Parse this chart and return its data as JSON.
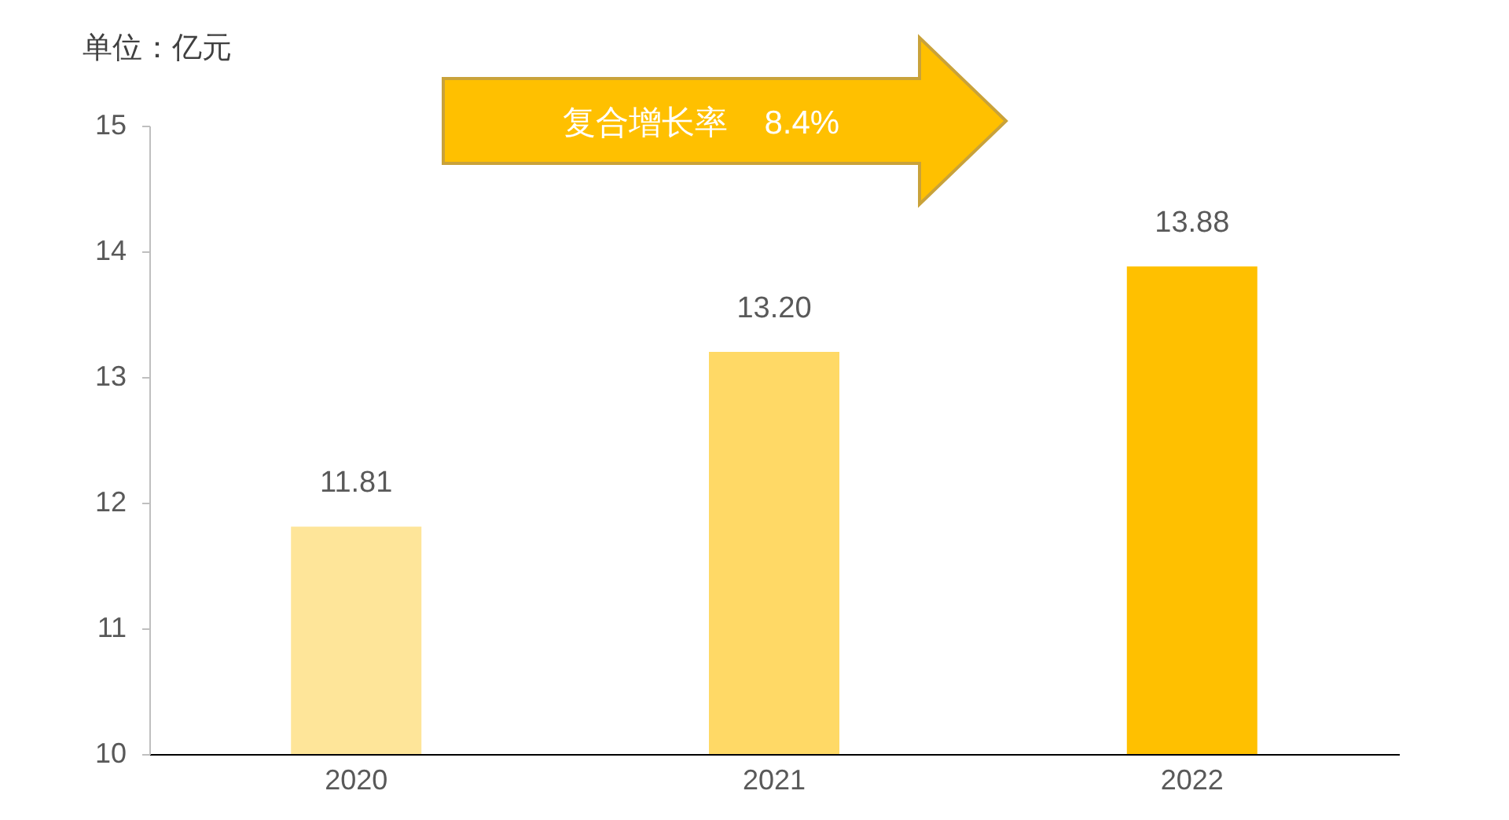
{
  "chart_data": {
    "type": "bar",
    "ylabel": "单位：亿元",
    "categories": [
      "2020",
      "2021",
      "2022"
    ],
    "values": [
      11.81,
      13.2,
      13.88
    ],
    "colors": [
      "#fee599",
      "#ffd966",
      "#ffc000"
    ],
    "value_labels": [
      "11.81",
      "13.20",
      "13.88"
    ],
    "ylim": [
      10,
      15
    ],
    "yticks": [
      10,
      11,
      12,
      13,
      14,
      15
    ],
    "grid": false,
    "legend": false,
    "annotations": [
      "复合增长率    8.4%"
    ]
  }
}
